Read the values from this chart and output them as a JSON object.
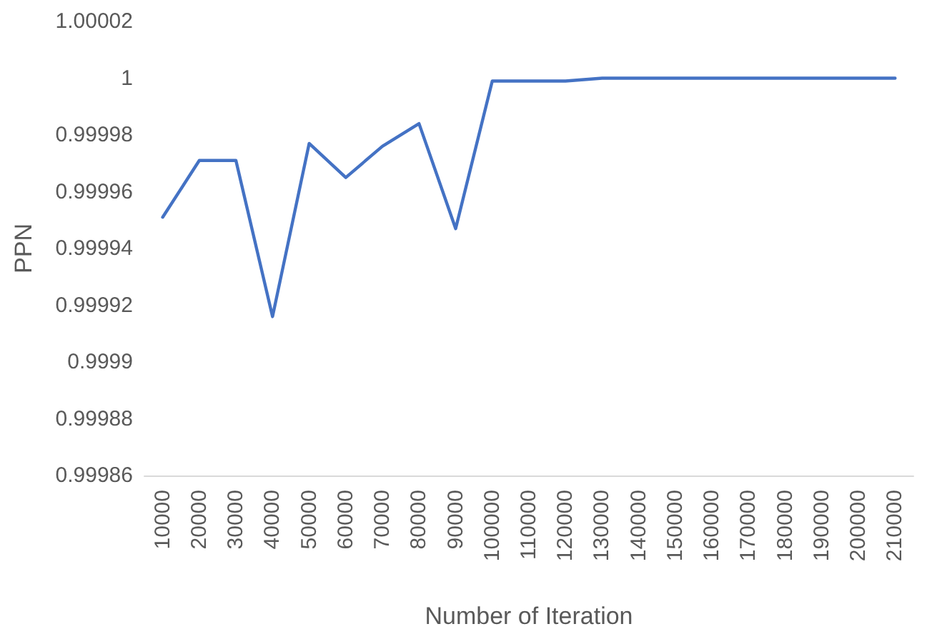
{
  "chart_data": {
    "type": "line",
    "xlabel": "Number of Iteration",
    "ylabel": "PPN",
    "categories": [
      "10000",
      "20000",
      "30000",
      "40000",
      "50000",
      "60000",
      "70000",
      "80000",
      "90000",
      "100000",
      "110000",
      "120000",
      "130000",
      "140000",
      "150000",
      "160000",
      "170000",
      "180000",
      "190000",
      "200000",
      "210000"
    ],
    "series": [
      {
        "color": "#4472c4",
        "values": [
          0.999951,
          0.999971,
          0.999971,
          0.999916,
          0.999977,
          0.999965,
          0.999976,
          0.999984,
          0.999947,
          0.999999,
          0.999999,
          0.999999,
          1,
          1,
          1,
          1,
          1,
          1,
          1,
          1,
          1
        ]
      }
    ],
    "ylim": [
      0.99986,
      1.00002
    ],
    "yticks": [
      0.99986,
      0.99988,
      0.9999,
      0.99992,
      0.99994,
      0.99996,
      0.99998,
      1,
      1.00002
    ],
    "grid": false,
    "marker": "none",
    "line_style": "solid"
  }
}
